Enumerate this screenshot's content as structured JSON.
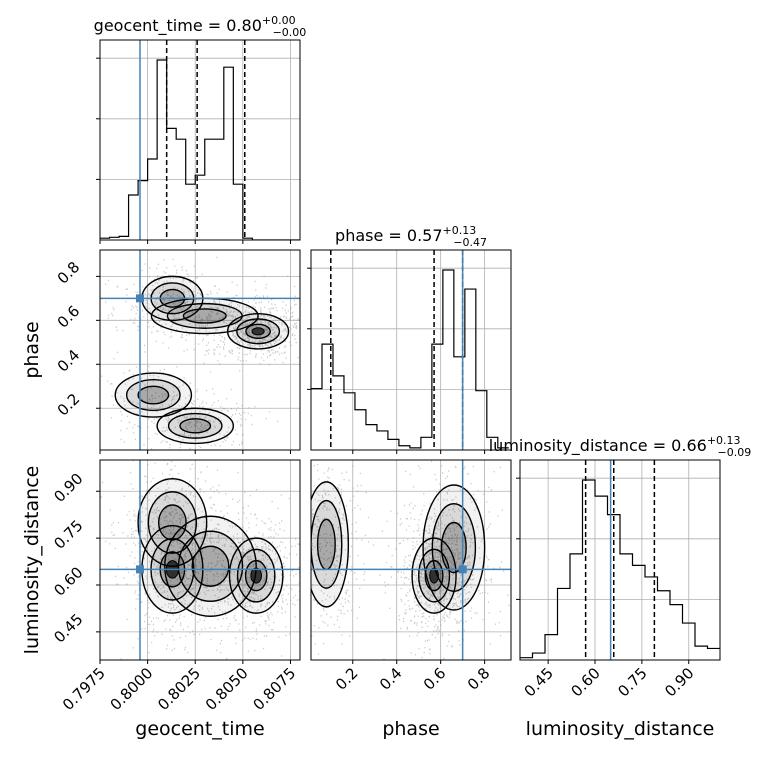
{
  "chart_data": {
    "type": "corner",
    "parameters": [
      "geocent_time",
      "phase",
      "luminosity_distance"
    ],
    "truths": {
      "geocent_time": 0.7996,
      "phase": 0.7,
      "luminosity_distance": 0.65
    },
    "truth_color": "#4682b4",
    "titles": [
      {
        "name": "geocent_time",
        "median": "0.80",
        "plus": "+0.00",
        "minus": "−0.00"
      },
      {
        "name": "phase",
        "median": "0.57",
        "plus": "+0.13",
        "minus": "−0.47"
      },
      {
        "name": "luminosity_distance",
        "median": "0.66",
        "plus": "+0.13",
        "minus": "−0.09"
      }
    ],
    "axis_labels": {
      "x": [
        "geocent_time",
        "phase",
        "luminosity_distance"
      ],
      "y": [
        "phase",
        "luminosity_distance"
      ]
    },
    "ticks": {
      "geocent_time": [
        "0.7975",
        "0.8000",
        "0.8025",
        "0.8050",
        "0.8075"
      ],
      "phase": [
        "0.2",
        "0.4",
        "0.6",
        "0.8"
      ],
      "luminosity_distance": [
        "0.45",
        "0.60",
        "0.75",
        "0.90"
      ]
    },
    "ranges": {
      "geocent_time": [
        0.7975,
        0.808
      ],
      "phase": [
        0.01,
        0.92
      ],
      "luminosity_distance": [
        0.36,
        1.0
      ]
    },
    "histograms": {
      "geocent_time": {
        "edges": [
          0.7975,
          0.798,
          0.7985,
          0.799,
          0.7995,
          0.8,
          0.8005,
          0.801,
          0.8015,
          0.802,
          0.8025,
          0.803,
          0.8035,
          0.804,
          0.8045,
          0.805,
          0.8055,
          0.806,
          0.8065,
          0.807,
          0.8075,
          0.808
        ],
        "counts": [
          0.01,
          0.015,
          0.02,
          0.25,
          0.33,
          0.45,
          1.0,
          0.62,
          0.56,
          0.31,
          0.36,
          0.56,
          0.56,
          0.96,
          0.31,
          0.01,
          0.0,
          0.0,
          0.0,
          0.0,
          0.0
        ],
        "quantiles": [
          0.801,
          0.8026,
          0.8051
        ]
      },
      "phase": {
        "edges": [
          0.01,
          0.06,
          0.11,
          0.16,
          0.21,
          0.26,
          0.31,
          0.36,
          0.41,
          0.46,
          0.51,
          0.56,
          0.61,
          0.66,
          0.71,
          0.76,
          0.81,
          0.86,
          0.91
        ],
        "counts": [
          0.29,
          0.5,
          0.35,
          0.27,
          0.19,
          0.12,
          0.09,
          0.05,
          0.02,
          0.01,
          0.06,
          0.5,
          0.85,
          0.44,
          0.76,
          0.28,
          0.06,
          0.01
        ],
        "quantiles": [
          0.1,
          0.57,
          0.7
        ]
      },
      "luminosity_distance": {
        "edges": [
          0.36,
          0.4,
          0.44,
          0.48,
          0.52,
          0.56,
          0.6,
          0.64,
          0.68,
          0.72,
          0.76,
          0.8,
          0.84,
          0.88,
          0.92,
          0.96,
          1.0
        ],
        "counts": [
          0.01,
          0.03,
          0.11,
          0.31,
          0.46,
          0.78,
          0.71,
          0.63,
          0.46,
          0.41,
          0.36,
          0.3,
          0.24,
          0.16,
          0.06,
          0.05
        ],
        "quantiles": [
          0.57,
          0.66,
          0.79
        ]
      }
    },
    "modes_2d": {
      "phase_vs_geocent_time": [
        {
          "x": 0.8013,
          "y": 0.7,
          "sx": 0.0008,
          "sy": 0.05,
          "w": 0.3
        },
        {
          "x": 0.8058,
          "y": 0.55,
          "sx": 0.0008,
          "sy": 0.04,
          "w": 0.55
        },
        {
          "x": 0.803,
          "y": 0.62,
          "sx": 0.0014,
          "sy": 0.04,
          "w": 0.25
        },
        {
          "x": 0.8003,
          "y": 0.26,
          "sx": 0.001,
          "sy": 0.05,
          "w": 0.15
        },
        {
          "x": 0.8025,
          "y": 0.12,
          "sx": 0.001,
          "sy": 0.04,
          "w": 0.25
        }
      ],
      "luminosity_distance_vs_geocent_time": [
        {
          "x": 0.8013,
          "y": 0.65,
          "sx": 0.0008,
          "sy": 0.07,
          "w": 0.45
        },
        {
          "x": 0.8057,
          "y": 0.63,
          "sx": 0.0007,
          "sy": 0.06,
          "w": 0.45
        },
        {
          "x": 0.8013,
          "y": 0.8,
          "sx": 0.0009,
          "sy": 0.07,
          "w": 0.3
        },
        {
          "x": 0.8033,
          "y": 0.66,
          "sx": 0.0012,
          "sy": 0.08,
          "w": 0.3
        }
      ],
      "luminosity_distance_vs_phase": [
        {
          "x": 0.57,
          "y": 0.63,
          "sx": 0.05,
          "sy": 0.06,
          "w": 0.6
        },
        {
          "x": 0.66,
          "y": 0.72,
          "sx": 0.07,
          "sy": 0.1,
          "w": 0.35
        },
        {
          "x": 0.08,
          "y": 0.73,
          "sx": 0.05,
          "sy": 0.1,
          "w": 0.35
        }
      ]
    }
  }
}
